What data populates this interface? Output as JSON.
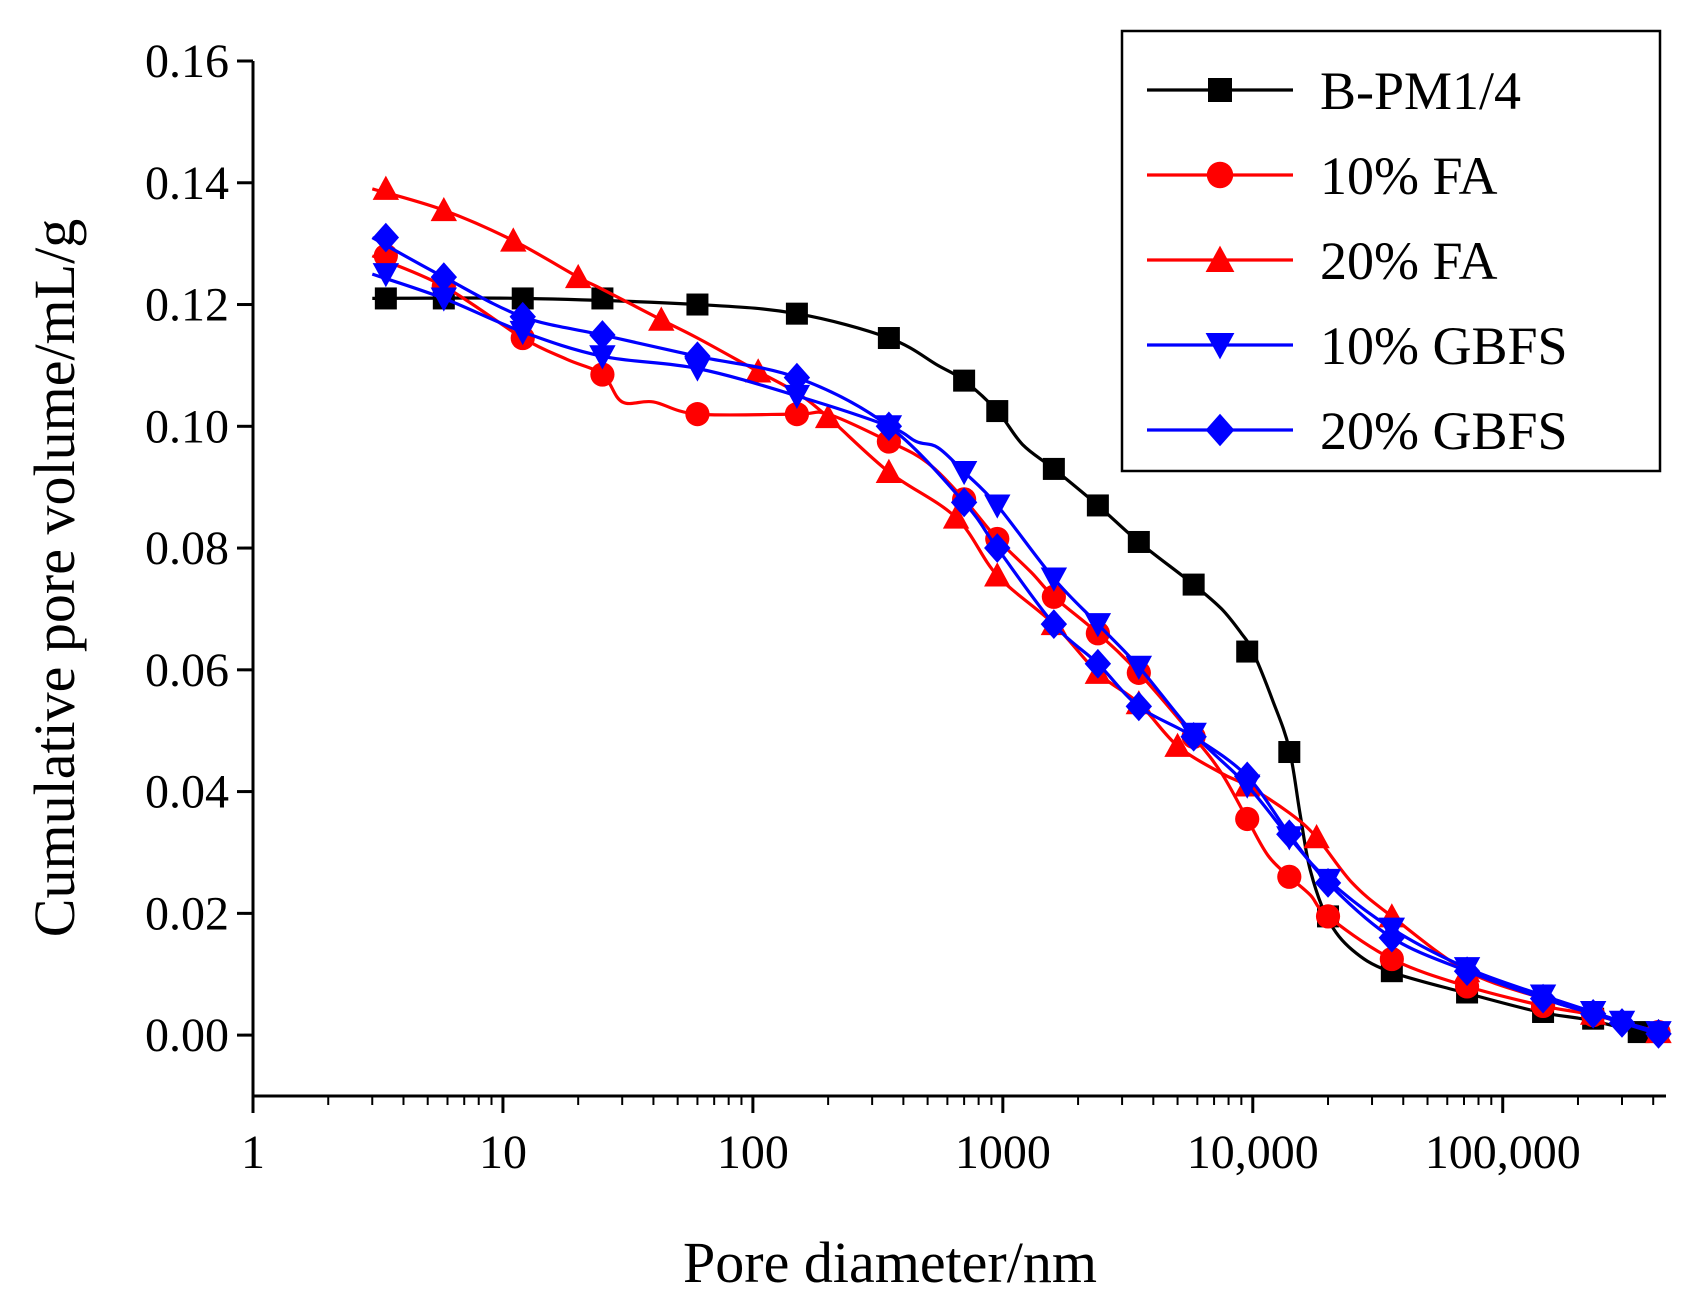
{
  "chart_data": {
    "type": "line",
    "xscale": "log",
    "xlabel": "Pore diameter/nm",
    "ylabel": "Cumulative pore volume/mL/g",
    "xlim": [
      1,
      450000
    ],
    "ylim": [
      -0.01,
      0.16
    ],
    "x_ticks": [
      {
        "value": 1,
        "label": "1"
      },
      {
        "value": 10,
        "label": "10"
      },
      {
        "value": 100,
        "label": "100"
      },
      {
        "value": 1000,
        "label": "1000"
      },
      {
        "value": 10000,
        "label": "10,000"
      },
      {
        "value": 100000,
        "label": "100,000"
      }
    ],
    "y_ticks": [
      {
        "value": 0.0,
        "label": "0.00"
      },
      {
        "value": 0.02,
        "label": "0.02"
      },
      {
        "value": 0.04,
        "label": "0.04"
      },
      {
        "value": 0.06,
        "label": "0.06"
      },
      {
        "value": 0.08,
        "label": "0.08"
      },
      {
        "value": 0.1,
        "label": "0.10"
      },
      {
        "value": 0.12,
        "label": "0.12"
      },
      {
        "value": 0.14,
        "label": "0.14"
      },
      {
        "value": 0.16,
        "label": "0.16"
      }
    ],
    "legend_position": "top-right",
    "series": [
      {
        "name": "B-PM1/4",
        "color": "#000000",
        "marker": "square",
        "line": [
          [
            3,
            0.121
          ],
          [
            12,
            0.121
          ],
          [
            60,
            0.12
          ],
          [
            150,
            0.1185
          ],
          [
            350,
            0.1145
          ],
          [
            550,
            0.11
          ],
          [
            700,
            0.1075
          ],
          [
            950,
            0.1025
          ],
          [
            1200,
            0.097
          ],
          [
            1600,
            0.093
          ],
          [
            2400,
            0.087
          ],
          [
            3500,
            0.081
          ],
          [
            5800,
            0.074
          ],
          [
            7500,
            0.07
          ],
          [
            9000,
            0.066
          ],
          [
            10000,
            0.063
          ],
          [
            12000,
            0.055
          ],
          [
            14000,
            0.047
          ],
          [
            15500,
            0.036
          ],
          [
            17000,
            0.027
          ],
          [
            20000,
            0.019
          ],
          [
            25000,
            0.014
          ],
          [
            35000,
            0.0105
          ],
          [
            70000,
            0.007
          ],
          [
            140000,
            0.0038
          ],
          [
            220000,
            0.0025
          ],
          [
            350000,
            0.0005
          ]
        ],
        "markers": [
          [
            3.4,
            0.121
          ],
          [
            5.8,
            0.121
          ],
          [
            12,
            0.121
          ],
          [
            25,
            0.121
          ],
          [
            60,
            0.12
          ],
          [
            150,
            0.1185
          ],
          [
            350,
            0.1145
          ],
          [
            700,
            0.1075
          ],
          [
            950,
            0.1025
          ],
          [
            1600,
            0.093
          ],
          [
            2400,
            0.087
          ],
          [
            3500,
            0.081
          ],
          [
            5800,
            0.074
          ],
          [
            9500,
            0.063
          ],
          [
            14000,
            0.0465
          ],
          [
            20000,
            0.0195
          ],
          [
            36000,
            0.0105
          ],
          [
            72000,
            0.007
          ],
          [
            145000,
            0.0038
          ],
          [
            230000,
            0.0027
          ],
          [
            350000,
            0.0005
          ]
        ]
      },
      {
        "name": "10% FA",
        "color": "#ff0000",
        "marker": "circle",
        "line": [
          [
            3,
            0.128
          ],
          [
            5.8,
            0.123
          ],
          [
            12,
            0.1145
          ],
          [
            18,
            0.111
          ],
          [
            25,
            0.1085
          ],
          [
            30,
            0.104
          ],
          [
            40,
            0.104
          ],
          [
            60,
            0.102
          ],
          [
            150,
            0.102
          ],
          [
            200,
            0.102
          ],
          [
            350,
            0.0975
          ],
          [
            500,
            0.094
          ],
          [
            700,
            0.088
          ],
          [
            950,
            0.0815
          ],
          [
            1300,
            0.076
          ],
          [
            1600,
            0.072
          ],
          [
            2400,
            0.066
          ],
          [
            3500,
            0.0595
          ],
          [
            5800,
            0.049
          ],
          [
            7500,
            0.043
          ],
          [
            9500,
            0.0355
          ],
          [
            11500,
            0.0295
          ],
          [
            14000,
            0.026
          ],
          [
            17000,
            0.023
          ],
          [
            20000,
            0.0195
          ],
          [
            36000,
            0.0125
          ],
          [
            72000,
            0.008
          ],
          [
            145000,
            0.0048
          ],
          [
            230000,
            0.0033
          ],
          [
            420000,
            0.0005
          ]
        ],
        "markers": [
          [
            3.4,
            0.128
          ],
          [
            5.8,
            0.123
          ],
          [
            12,
            0.1145
          ],
          [
            25,
            0.1085
          ],
          [
            60,
            0.102
          ],
          [
            150,
            0.102
          ],
          [
            350,
            0.0975
          ],
          [
            700,
            0.088
          ],
          [
            950,
            0.0815
          ],
          [
            1600,
            0.072
          ],
          [
            2400,
            0.066
          ],
          [
            3500,
            0.0595
          ],
          [
            5800,
            0.049
          ],
          [
            9500,
            0.0355
          ],
          [
            14000,
            0.026
          ],
          [
            20000,
            0.0195
          ],
          [
            36000,
            0.0125
          ],
          [
            72000,
            0.008
          ],
          [
            145000,
            0.0048
          ],
          [
            230000,
            0.0033
          ],
          [
            420000,
            0.0005
          ]
        ]
      },
      {
        "name": "20% FA",
        "color": "#ff0000",
        "marker": "triangle-up",
        "line": [
          [
            3,
            0.139
          ],
          [
            5.8,
            0.1355
          ],
          [
            11,
            0.1305
          ],
          [
            20,
            0.1245
          ],
          [
            25,
            0.1225
          ],
          [
            43,
            0.1175
          ],
          [
            60,
            0.1145
          ],
          [
            105,
            0.109
          ],
          [
            150,
            0.1055
          ],
          [
            200,
            0.1015
          ],
          [
            350,
            0.0925
          ],
          [
            650,
            0.085
          ],
          [
            950,
            0.0755
          ],
          [
            1600,
            0.0675
          ],
          [
            2400,
            0.0595
          ],
          [
            3500,
            0.0545
          ],
          [
            5000,
            0.0475
          ],
          [
            7500,
            0.043
          ],
          [
            9500,
            0.041
          ],
          [
            14000,
            0.0365
          ],
          [
            18000,
            0.0325
          ],
          [
            25000,
            0.025
          ],
          [
            36000,
            0.0195
          ],
          [
            72000,
            0.0105
          ],
          [
            145000,
            0.006
          ],
          [
            230000,
            0.0035
          ],
          [
            420000,
            0.0005
          ]
        ],
        "markers": [
          [
            3.4,
            0.139
          ],
          [
            5.8,
            0.1355
          ],
          [
            11,
            0.1305
          ],
          [
            20,
            0.1245
          ],
          [
            43,
            0.1175
          ],
          [
            105,
            0.109
          ],
          [
            200,
            0.1015
          ],
          [
            350,
            0.0925
          ],
          [
            650,
            0.085
          ],
          [
            950,
            0.0755
          ],
          [
            1600,
            0.0675
          ],
          [
            2400,
            0.0595
          ],
          [
            3500,
            0.0545
          ],
          [
            5000,
            0.0475
          ],
          [
            9500,
            0.041
          ],
          [
            18000,
            0.0325
          ],
          [
            36000,
            0.0195
          ],
          [
            72000,
            0.0105
          ],
          [
            145000,
            0.006
          ],
          [
            230000,
            0.0035
          ],
          [
            420000,
            0.0005
          ]
        ]
      },
      {
        "name": "10% GBFS",
        "color": "#0000ff",
        "marker": "triangle-down",
        "line": [
          [
            3,
            0.125
          ],
          [
            5.8,
            0.121
          ],
          [
            12,
            0.1155
          ],
          [
            25,
            0.1115
          ],
          [
            60,
            0.1095
          ],
          [
            150,
            0.105
          ],
          [
            350,
            0.1
          ],
          [
            450,
            0.0975
          ],
          [
            550,
            0.0965
          ],
          [
            700,
            0.0925
          ],
          [
            950,
            0.087
          ],
          [
            1600,
            0.075
          ],
          [
            2400,
            0.0675
          ],
          [
            3500,
            0.0605
          ],
          [
            5800,
            0.0495
          ],
          [
            9500,
            0.041
          ],
          [
            14000,
            0.0325
          ],
          [
            20000,
            0.0255
          ],
          [
            36000,
            0.0175
          ],
          [
            72000,
            0.011
          ],
          [
            145000,
            0.0065
          ],
          [
            230000,
            0.0038
          ],
          [
            300000,
            0.0022
          ],
          [
            420000,
            0.0005
          ]
        ],
        "markers": [
          [
            3.4,
            0.125
          ],
          [
            5.8,
            0.121
          ],
          [
            12,
            0.1155
          ],
          [
            25,
            0.1115
          ],
          [
            60,
            0.1095
          ],
          [
            150,
            0.105
          ],
          [
            350,
            0.1
          ],
          [
            700,
            0.0925
          ],
          [
            950,
            0.087
          ],
          [
            1600,
            0.075
          ],
          [
            2400,
            0.0675
          ],
          [
            3500,
            0.0605
          ],
          [
            5800,
            0.0495
          ],
          [
            9500,
            0.041
          ],
          [
            14000,
            0.0325
          ],
          [
            20000,
            0.0255
          ],
          [
            36000,
            0.0175
          ],
          [
            72000,
            0.011
          ],
          [
            145000,
            0.0065
          ],
          [
            230000,
            0.0038
          ],
          [
            300000,
            0.0022
          ],
          [
            420000,
            0.0005
          ]
        ]
      },
      {
        "name": "20% GBFS",
        "color": "#0000ff",
        "marker": "diamond",
        "line": [
          [
            3,
            0.131
          ],
          [
            5.8,
            0.1245
          ],
          [
            12,
            0.118
          ],
          [
            25,
            0.115
          ],
          [
            60,
            0.1115
          ],
          [
            150,
            0.108
          ],
          [
            350,
            0.1
          ],
          [
            700,
            0.0875
          ],
          [
            950,
            0.08
          ],
          [
            1600,
            0.0675
          ],
          [
            2400,
            0.061
          ],
          [
            3500,
            0.054
          ],
          [
            5800,
            0.049
          ],
          [
            9500,
            0.0425
          ],
          [
            14000,
            0.033
          ],
          [
            20000,
            0.025
          ],
          [
            36000,
            0.016
          ],
          [
            72000,
            0.0105
          ],
          [
            145000,
            0.006
          ],
          [
            230000,
            0.0035
          ],
          [
            300000,
            0.002
          ],
          [
            420000,
            0.0002
          ]
        ],
        "markers": [
          [
            3.4,
            0.131
          ],
          [
            5.8,
            0.1245
          ],
          [
            12,
            0.118
          ],
          [
            25,
            0.115
          ],
          [
            60,
            0.1115
          ],
          [
            150,
            0.108
          ],
          [
            350,
            0.1
          ],
          [
            700,
            0.0875
          ],
          [
            950,
            0.08
          ],
          [
            1600,
            0.0675
          ],
          [
            2400,
            0.061
          ],
          [
            3500,
            0.054
          ],
          [
            5800,
            0.049
          ],
          [
            9500,
            0.0425
          ],
          [
            14000,
            0.033
          ],
          [
            20000,
            0.025
          ],
          [
            36000,
            0.016
          ],
          [
            72000,
            0.0105
          ],
          [
            145000,
            0.006
          ],
          [
            230000,
            0.0035
          ],
          [
            300000,
            0.002
          ],
          [
            420000,
            0.0002
          ]
        ]
      }
    ]
  }
}
